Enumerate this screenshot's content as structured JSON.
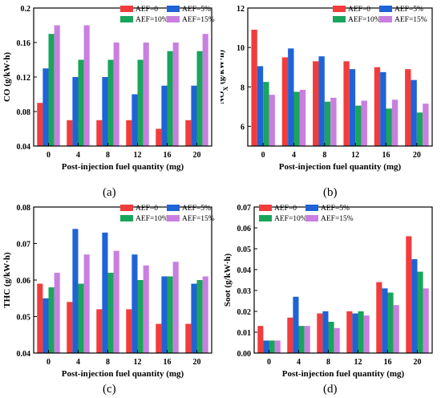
{
  "figure": {
    "legend_labels": [
      "AEF=0",
      "AEF=5%",
      "AEF=10%",
      "AEF=15%"
    ],
    "series_colors": [
      "#f23c3c",
      "#1f63d6",
      "#19a55b",
      "#c97fe0"
    ]
  },
  "chart_data": [
    {
      "type": "bar",
      "panel": "(a)",
      "xlabel": "Post-injection fuel quantity (mg)",
      "ylabel": "CO (g/kW·h)",
      "categories": [
        "0",
        "4",
        "8",
        "12",
        "16",
        "20"
      ],
      "ylim": [
        0.04,
        0.2
      ],
      "yticks": [
        0.04,
        0.08,
        0.12,
        0.16,
        0.2
      ],
      "ytick_labels": [
        "0.04",
        "0.08",
        "0.12",
        "0.16",
        "0.2"
      ],
      "legend": "top-right",
      "grid": false,
      "series": [
        {
          "name": "AEF=0",
          "color": "#f23c3c",
          "values": [
            0.09,
            0.07,
            0.07,
            0.07,
            0.06,
            0.07
          ]
        },
        {
          "name": "AEF=5%",
          "color": "#1f63d6",
          "values": [
            0.13,
            0.12,
            0.12,
            0.1,
            0.11,
            0.11
          ]
        },
        {
          "name": "AEF=10%",
          "color": "#19a55b",
          "values": [
            0.17,
            0.14,
            0.14,
            0.14,
            0.15,
            0.15
          ]
        },
        {
          "name": "AEF=15%",
          "color": "#c97fe0",
          "values": [
            0.18,
            0.18,
            0.16,
            0.16,
            0.16,
            0.17
          ]
        }
      ]
    },
    {
      "type": "bar",
      "panel": "(b)",
      "xlabel": "Post-injection fuel quantity (mg)",
      "ylabel": "NOX (g/kW·h)",
      "categories": [
        "0",
        "4",
        "8",
        "12",
        "16",
        "20"
      ],
      "ylim": [
        5,
        12
      ],
      "yticks": [
        6,
        8,
        10,
        12
      ],
      "ytick_labels": [
        "6",
        "8",
        "10",
        "12"
      ],
      "legend": "top-right",
      "grid": false,
      "series": [
        {
          "name": "AEF=0",
          "color": "#f23c3c",
          "values": [
            10.9,
            9.5,
            9.3,
            9.3,
            9.0,
            8.9
          ]
        },
        {
          "name": "AEF=5%",
          "color": "#1f63d6",
          "values": [
            9.05,
            9.95,
            9.55,
            8.9,
            8.75,
            8.35
          ]
        },
        {
          "name": "AEF=10%",
          "color": "#19a55b",
          "values": [
            8.25,
            7.75,
            7.25,
            7.05,
            6.9,
            6.7
          ]
        },
        {
          "name": "AEF=15%",
          "color": "#c97fe0",
          "values": [
            7.6,
            7.85,
            7.45,
            7.3,
            7.35,
            7.15
          ]
        }
      ]
    },
    {
      "type": "bar",
      "panel": "(c)",
      "xlabel": "Post-injection fuel quantity (mg)",
      "ylabel": "THC (g/kW·h)",
      "categories": [
        "0",
        "4",
        "8",
        "12",
        "16",
        "20"
      ],
      "ylim": [
        0.04,
        0.08
      ],
      "yticks": [
        0.04,
        0.05,
        0.06,
        0.07,
        0.08
      ],
      "ytick_labels": [
        "0.04",
        "0.05",
        "0.06",
        "0.07",
        "0.08"
      ],
      "legend": "top-right",
      "grid": false,
      "series": [
        {
          "name": "AEF=0",
          "color": "#f23c3c",
          "values": [
            0.059,
            0.054,
            0.052,
            0.052,
            0.048,
            0.048
          ]
        },
        {
          "name": "AEF=5%",
          "color": "#1f63d6",
          "values": [
            0.055,
            0.074,
            0.073,
            0.067,
            0.061,
            0.059
          ]
        },
        {
          "name": "AEF=10%",
          "color": "#19a55b",
          "values": [
            0.058,
            0.059,
            0.062,
            0.06,
            0.061,
            0.06
          ]
        },
        {
          "name": "AEF=15%",
          "color": "#c97fe0",
          "values": [
            0.062,
            0.067,
            0.068,
            0.064,
            0.065,
            0.061
          ]
        }
      ]
    },
    {
      "type": "bar",
      "panel": "(d)",
      "xlabel": "Post-injection fuel quantity (mg)",
      "ylabel": "Soot (g/kW·h)",
      "categories": [
        "0",
        "4",
        "8",
        "12",
        "16",
        "20"
      ],
      "ylim": [
        0,
        0.07
      ],
      "yticks": [
        0,
        0.01,
        0.02,
        0.03,
        0.04,
        0.05,
        0.06,
        0.07
      ],
      "ytick_labels": [
        "0.00",
        "0.01",
        "0.02",
        "0.03",
        "0.04",
        "0.05",
        "0.06",
        "0.07"
      ],
      "legend": "top-left",
      "grid": false,
      "series": [
        {
          "name": "AEF=0",
          "color": "#f23c3c",
          "values": [
            0.013,
            0.017,
            0.019,
            0.02,
            0.034,
            0.056
          ]
        },
        {
          "name": "AEF=5%",
          "color": "#1f63d6",
          "values": [
            0.006,
            0.027,
            0.02,
            0.019,
            0.031,
            0.045
          ]
        },
        {
          "name": "AEF=10%",
          "color": "#19a55b",
          "values": [
            0.006,
            0.013,
            0.015,
            0.02,
            0.029,
            0.039
          ]
        },
        {
          "name": "AEF=15%",
          "color": "#c97fe0",
          "values": [
            0.006,
            0.013,
            0.012,
            0.018,
            0.023,
            0.031
          ]
        }
      ]
    }
  ]
}
